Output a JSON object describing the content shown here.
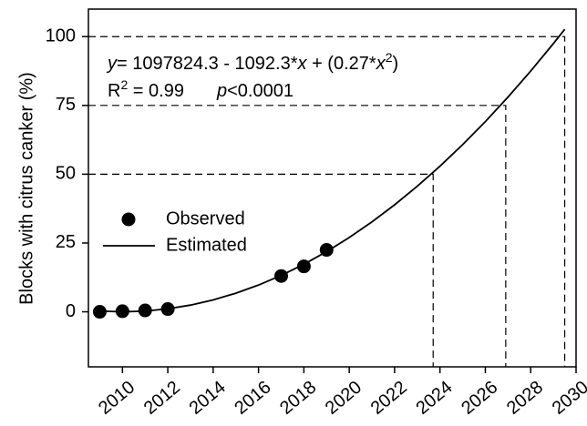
{
  "chart_data": {
    "type": "scatter-fit",
    "y_label": "Blocks with citrus canker (%)",
    "equation": [
      "y",
      "= 1097824.3 - 1092.3*",
      "x",
      " + (0.27*",
      "x",
      "2",
      ")"
    ],
    "stats": [
      "R",
      "2",
      " = 0.99",
      "p",
      "<0.0001"
    ],
    "xlim": [
      2008.5,
      2030
    ],
    "ylim": [
      -20,
      110
    ],
    "xticks": [
      2010,
      2012,
      2014,
      2016,
      2018,
      2020,
      2022,
      2024,
      2026,
      2028,
      2030
    ],
    "yticks": [
      0,
      25,
      50,
      75,
      100
    ],
    "series": [
      {
        "name": "Observed",
        "color": "#000000",
        "kind": "points",
        "x": [
          2009,
          2010,
          2011,
          2012,
          2017,
          2018,
          2019
        ],
        "values": [
          0,
          0.2,
          0.5,
          1,
          13,
          16.5,
          22.5
        ]
      },
      {
        "name": "Estimated",
        "color": "#000000",
        "kind": "line",
        "x": [
          2009,
          2010,
          2011,
          2012,
          2013,
          2014,
          2015,
          2016,
          2017,
          2018,
          2019,
          2020,
          2021,
          2022,
          2023,
          2024,
          2025,
          2026,
          2027,
          2028,
          2029,
          2029.5
        ],
        "values": [
          0.27,
          0,
          0.27,
          1.08,
          2.43,
          4.32,
          6.75,
          9.72,
          13.23,
          17.28,
          21.87,
          27,
          32.67,
          38.88,
          45.63,
          52.92,
          60.75,
          69.12,
          78.03,
          87.48,
          97.47,
          102.67
        ]
      }
    ],
    "reference_points": {
      "x": [
        2023.7,
        2026.9,
        2029.5
      ],
      "values": [
        50,
        75,
        100
      ]
    }
  }
}
